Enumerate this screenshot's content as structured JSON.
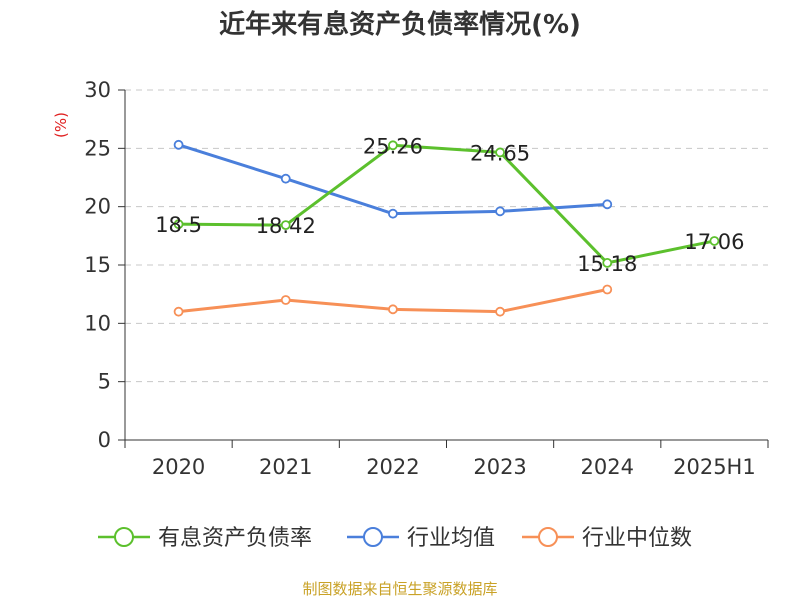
{
  "chart_data": {
    "type": "line",
    "title": "近年来有息资产负债率情况(%)",
    "ylabel": "(%)",
    "xlabel": "",
    "categories": [
      "2020",
      "2021",
      "2022",
      "2023",
      "2024",
      "2025H1"
    ],
    "ylim": [
      0,
      30
    ],
    "yticks": [
      0,
      5,
      10,
      15,
      20,
      25,
      30
    ],
    "grid": "horizontal dashed",
    "legend_position": "bottom",
    "series": [
      {
        "name": "有息资产负债率",
        "color": "#5cc02d",
        "values": [
          18.5,
          18.42,
          25.26,
          24.65,
          15.18,
          17.06
        ],
        "labels": [
          "18.5",
          "18.42",
          "25.26",
          "24.65",
          "15.18",
          "17.06"
        ]
      },
      {
        "name": "行业均值",
        "color": "#4a7fdb",
        "values": [
          25.3,
          22.4,
          19.4,
          19.6,
          20.2,
          null
        ]
      },
      {
        "name": "行业中位数",
        "color": "#f79057",
        "values": [
          11.0,
          12.0,
          11.2,
          11.0,
          12.9,
          null
        ]
      }
    ],
    "source": "制图数据来自恒生聚源数据库"
  }
}
